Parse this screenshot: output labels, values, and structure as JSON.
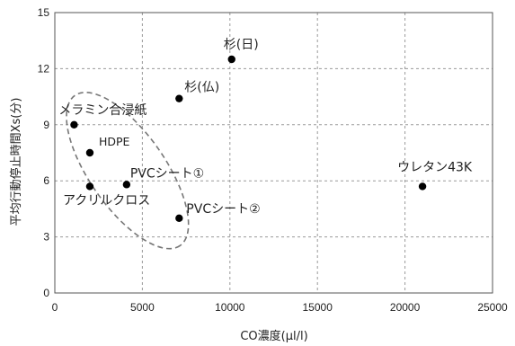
{
  "chart_data": {
    "type": "scatter",
    "xlabel": "CO濃度(μl/l)",
    "ylabel": "平均行動停止時間Xs(分)",
    "xlim": [
      0,
      25000
    ],
    "ylim": [
      0,
      15
    ],
    "xticks": [
      0,
      5000,
      10000,
      15000,
      20000,
      25000
    ],
    "yticks": [
      0,
      3,
      6,
      9,
      12,
      15
    ],
    "grid": "dashed",
    "points": [
      {
        "x": 10100,
        "y": 12.5,
        "label": "杉(日)"
      },
      {
        "x": 7100,
        "y": 10.4,
        "label": "杉(仏)"
      },
      {
        "x": 1100,
        "y": 9.0,
        "label": "メラミン合浸紙"
      },
      {
        "x": 2000,
        "y": 7.5,
        "label": "HDPE"
      },
      {
        "x": 4100,
        "y": 5.8,
        "label": "PVCシート①"
      },
      {
        "x": 2000,
        "y": 5.7,
        "label": "アクリルクロス"
      },
      {
        "x": 7100,
        "y": 4.0,
        "label": "PVCシート②"
      },
      {
        "x": 21000,
        "y": 5.7,
        "label": "ウレタン43K"
      }
    ],
    "annotation": "dashed ellipse grouping low-CO materials"
  }
}
